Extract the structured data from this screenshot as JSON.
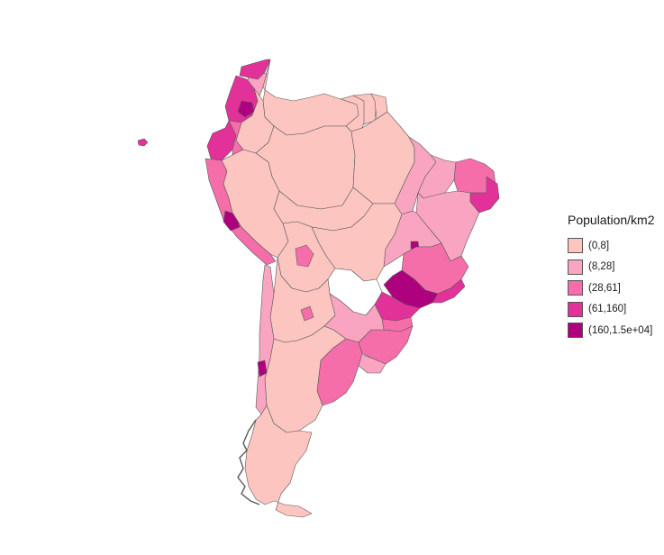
{
  "legend": {
    "title": "Population/km2",
    "classes": [
      {
        "label": "(0,8]",
        "color": "#fcc5c0"
      },
      {
        "label": "(8,28]",
        "color": "#f9a4c0"
      },
      {
        "label": "(28,61]",
        "color": "#f56ea9"
      },
      {
        "label": "(61,160]",
        "color": "#e23199"
      },
      {
        "label": "(160,1.5e+04]",
        "color": "#ae017e"
      }
    ]
  },
  "map": {
    "border_color": "#5a5a5a",
    "nodata_color": "#ffffff",
    "regions": [
      {
        "name": "colombia-caribbean",
        "class": 3
      },
      {
        "name": "colombia-andes",
        "class": 3
      },
      {
        "name": "bogota",
        "class": 4
      },
      {
        "name": "colombia-llanos",
        "class": 0
      },
      {
        "name": "venezuela-andes",
        "class": 1
      },
      {
        "name": "venezuela-east",
        "class": 0
      },
      {
        "name": "guyana",
        "class": 0
      },
      {
        "name": "suriname",
        "class": 0
      },
      {
        "name": "french-guiana",
        "class": 0
      },
      {
        "name": "ecuador-coast",
        "class": 3
      },
      {
        "name": "ecuador-andes",
        "class": 2
      },
      {
        "name": "galapagos",
        "class": 3
      },
      {
        "name": "peru-coast",
        "class": 2
      },
      {
        "name": "lima",
        "class": 4
      },
      {
        "name": "peru-interior",
        "class": 0
      },
      {
        "name": "amazon-basin",
        "class": 0
      },
      {
        "name": "brazil-north",
        "class": 0
      },
      {
        "name": "para",
        "class": 0
      },
      {
        "name": "maranhao",
        "class": 1
      },
      {
        "name": "piaui",
        "class": 1
      },
      {
        "name": "ceara",
        "class": 2
      },
      {
        "name": "recife-coast",
        "class": 3
      },
      {
        "name": "bahia",
        "class": 1
      },
      {
        "name": "goias",
        "class": 1
      },
      {
        "name": "brasilia",
        "class": 4
      },
      {
        "name": "minas-gerais",
        "class": 2
      },
      {
        "name": "sao-paulo",
        "class": 4
      },
      {
        "name": "rio-de-janeiro",
        "class": 3
      },
      {
        "name": "parana",
        "class": 3
      },
      {
        "name": "santa-catarina",
        "class": 2
      },
      {
        "name": "rio-grande-do-sul",
        "class": 2
      },
      {
        "name": "mato-grosso",
        "class": 0
      },
      {
        "name": "bolivia",
        "class": 0
      },
      {
        "name": "cochabamba",
        "class": 2
      },
      {
        "name": "paraguay",
        "class": null
      },
      {
        "name": "argentina-north",
        "class": 0
      },
      {
        "name": "tucuman",
        "class": 2
      },
      {
        "name": "argentina-northeast",
        "class": 1
      },
      {
        "name": "uruguay",
        "class": 1
      },
      {
        "name": "buenos-aires",
        "class": 2
      },
      {
        "name": "argentina-central",
        "class": 0
      },
      {
        "name": "chile-central",
        "class": 1
      },
      {
        "name": "santiago",
        "class": 4
      },
      {
        "name": "patagonia",
        "class": 0
      }
    ]
  }
}
